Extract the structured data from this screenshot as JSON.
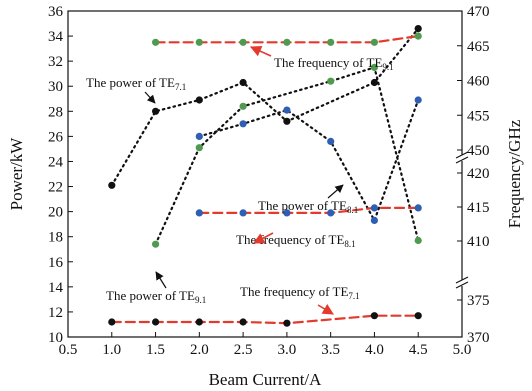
{
  "chart_data": {
    "type": "line",
    "xlabel": "Beam Current/A",
    "ylabel_left": "Power/kW",
    "ylabel_right": "Frequency/GHz",
    "xlim": [
      0.5,
      5.0
    ],
    "xticks": [
      "0.5",
      "1.0",
      "1.5",
      "2.0",
      "2.5",
      "3.0",
      "3.5",
      "4.0",
      "4.5",
      "5.0"
    ],
    "ylim_left": [
      10,
      36
    ],
    "yticks_left": [
      "10",
      "12",
      "14",
      "16",
      "18",
      "20",
      "22",
      "24",
      "26",
      "28",
      "30",
      "32",
      "34",
      "36"
    ],
    "right_axis": {
      "broken": true,
      "segments": [
        {
          "range": [
            370,
            375
          ],
          "ticks": [
            "370",
            "375"
          ]
        },
        {
          "range": [
            410,
            420
          ],
          "ticks": [
            "410",
            "415",
            "420"
          ]
        },
        {
          "range": [
            450,
            470
          ],
          "ticks": [
            "450",
            "455",
            "460",
            "465",
            "470"
          ]
        }
      ]
    },
    "grid": false,
    "legend": "none",
    "series": [
      {
        "key": "power_te71",
        "axis": "left",
        "line_color": "#111111",
        "line_style": "dotted",
        "marker_color": "#111111",
        "x": [
          1.0,
          1.5,
          2.0,
          2.5,
          3.0,
          4.0,
          4.5
        ],
        "y": [
          22.1,
          28.0,
          28.9,
          30.3,
          27.2,
          30.3,
          34.6
        ]
      },
      {
        "key": "power_te81",
        "axis": "left",
        "line_color": "#111111",
        "line_style": "dotted",
        "marker_color": "#2e5fb3",
        "x": [
          2.0,
          2.5,
          3.0,
          3.5,
          4.0,
          4.5
        ],
        "y": [
          26.0,
          27.0,
          28.1,
          25.6,
          19.3,
          28.9
        ]
      },
      {
        "key": "power_te91",
        "axis": "left",
        "line_color": "#111111",
        "line_style": "dotted",
        "marker_color": "#4f9a4f",
        "x": [
          1.5,
          2.0,
          2.5,
          3.5,
          4.0,
          4.5
        ],
        "y": [
          17.4,
          25.1,
          28.4,
          30.4,
          31.5,
          17.7
        ]
      },
      {
        "key": "freq_te91",
        "axis": "left",
        "line_color": "#e23b2e",
        "line_style": "dashed",
        "marker_color": "#4f9a4f",
        "x": [
          1.5,
          2.0,
          2.5,
          3.0,
          3.5,
          4.0,
          4.5
        ],
        "y": [
          33.5,
          33.5,
          33.5,
          33.5,
          33.5,
          33.5,
          34.0
        ]
      },
      {
        "key": "freq_te81",
        "axis": "left",
        "line_color": "#e23b2e",
        "line_style": "dashed",
        "marker_color": "#2e5fb3",
        "x": [
          2.0,
          2.5,
          3.0,
          3.5,
          4.0,
          4.5
        ],
        "y": [
          19.9,
          19.9,
          19.9,
          19.9,
          20.3,
          20.3
        ]
      },
      {
        "key": "freq_te71",
        "axis": "left",
        "line_color": "#e23b2e",
        "line_style": "dashed",
        "marker_color": "#111111",
        "x": [
          1.0,
          1.5,
          2.0,
          2.5,
          3.0,
          4.0,
          4.5
        ],
        "y": [
          11.2,
          11.2,
          11.2,
          11.2,
          11.1,
          11.7,
          11.7
        ]
      }
    ],
    "annotations": [
      {
        "key": "ann_power_te71",
        "text": "The power of TE",
        "sub": "7.1",
        "arrow_color": "#111111"
      },
      {
        "key": "ann_freq_te91",
        "text": "The frequency of TE",
        "sub": "9.1",
        "arrow_color": "#e23b2e"
      },
      {
        "key": "ann_power_te81",
        "text": "The power of TE",
        "sub": "8.1",
        "arrow_color": "#111111"
      },
      {
        "key": "ann_freq_te81",
        "text": "The frequency of TE",
        "sub": "8.1",
        "arrow_color": "#e23b2e"
      },
      {
        "key": "ann_power_te91",
        "text": "The power of TE",
        "sub": "9.1",
        "arrow_color": "#111111"
      },
      {
        "key": "ann_freq_te71",
        "text": "The frequency of TE",
        "sub": "7.1",
        "arrow_color": "#e23b2e"
      }
    ]
  }
}
